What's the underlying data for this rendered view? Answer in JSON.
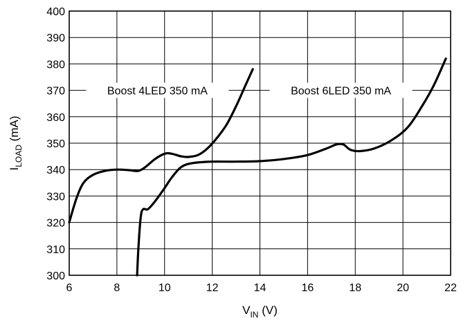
{
  "chart_data": {
    "type": "line",
    "xlabel": {
      "main": "V",
      "sub": "IN",
      "unit": " (V)"
    },
    "ylabel": {
      "main": "I",
      "sub": "LOAD",
      "unit": " (mA)"
    },
    "xlim": [
      6,
      22
    ],
    "ylim": [
      300,
      400
    ],
    "xticks": [
      6,
      8,
      10,
      12,
      14,
      16,
      18,
      20,
      22
    ],
    "yticks": [
      300,
      310,
      320,
      330,
      340,
      350,
      360,
      370,
      380,
      390,
      400
    ],
    "grid": true,
    "series": [
      {
        "name": "Boost 4LED 350 mA",
        "x": [
          6.0,
          6.3,
          6.6,
          7.0,
          7.5,
          8.0,
          8.5,
          8.9,
          9.2,
          9.6,
          10.0,
          10.3,
          10.7,
          11.0,
          11.4,
          11.8,
          12.2,
          12.6,
          13.0,
          13.4,
          13.7
        ],
        "y": [
          320,
          329,
          335,
          338,
          339.5,
          340,
          339.8,
          339.5,
          341,
          344,
          346,
          346,
          345,
          344.8,
          345.5,
          348,
          352,
          357,
          364,
          372,
          378
        ]
      },
      {
        "name": "Boost 6LED 350 mA",
        "x": [
          8.85,
          8.9,
          9.0,
          9.1,
          9.3,
          9.6,
          10.0,
          10.3,
          10.7,
          11.2,
          12.0,
          13.0,
          14.0,
          15.0,
          16.0,
          16.8,
          17.2,
          17.5,
          17.8,
          18.2,
          18.8,
          19.5,
          20.2,
          20.8,
          21.3,
          21.8
        ],
        "y": [
          300,
          310,
          322,
          325,
          325,
          328,
          333,
          337,
          341,
          342.5,
          343,
          343,
          343.2,
          344,
          345.5,
          348,
          349.5,
          349.5,
          347.5,
          347,
          348,
          351,
          356,
          364,
          372,
          382
        ]
      }
    ],
    "annotations": [
      {
        "text": "Boost 4LED 350 mA",
        "series": 0
      },
      {
        "text": "Boost 6LED 350 mA",
        "series": 1
      }
    ]
  }
}
